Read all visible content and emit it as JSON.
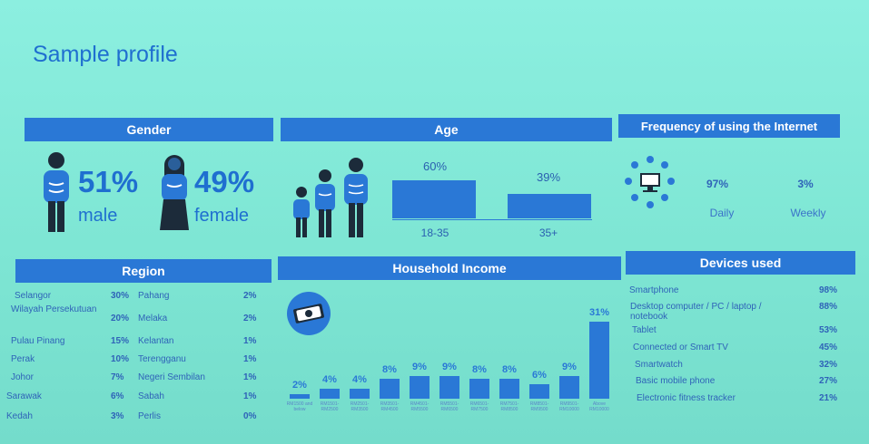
{
  "title": "Sample profile",
  "gender": {
    "header": "Gender",
    "male_pct": "51%",
    "male_label": "male",
    "female_pct": "49%",
    "female_label": "female"
  },
  "age": {
    "header": "Age",
    "groups": [
      {
        "label": "18-35",
        "value": "60%"
      },
      {
        "label": "35+",
        "value": "39%"
      }
    ]
  },
  "frequency": {
    "header": "Frequency of using the Internet",
    "items": [
      {
        "label": "Daily",
        "value": "97%"
      },
      {
        "label": "Weekly",
        "value": "3%"
      }
    ]
  },
  "region": {
    "header": "Region",
    "left": [
      {
        "name": "Selangor",
        "value": "30%"
      },
      {
        "name": "Wilayah Persekutuan",
        "value": "20%"
      },
      {
        "name": "Pulau Pinang",
        "value": "15%"
      },
      {
        "name": "Perak",
        "value": "10%"
      },
      {
        "name": "Johor",
        "value": "7%"
      },
      {
        "name": "Sarawak",
        "value": "6%"
      },
      {
        "name": "Kedah",
        "value": "3%"
      }
    ],
    "right": [
      {
        "name": "Pahang",
        "value": "2%"
      },
      {
        "name": "Melaka",
        "value": "2%"
      },
      {
        "name": "Kelantan",
        "value": "1%"
      },
      {
        "name": "Terengganu",
        "value": "1%"
      },
      {
        "name": "Negeri Sembilan",
        "value": "1%"
      },
      {
        "name": "Sabah",
        "value": "1%"
      },
      {
        "name": "Perlis",
        "value": "0%"
      }
    ]
  },
  "income": {
    "header": "Household Income"
  },
  "devices": {
    "header": "Devices used",
    "items": [
      {
        "name": "Smartphone",
        "value": "98%"
      },
      {
        "name": "Desktop computer / PC / laptop / notebook",
        "value": "88%"
      },
      {
        "name": "Tablet",
        "value": "53%"
      },
      {
        "name": "Connected or Smart TV",
        "value": "45%"
      },
      {
        "name": "Smartwatch",
        "value": "32%"
      },
      {
        "name": "Basic mobile phone",
        "value": "27%"
      },
      {
        "name": "Electronic fitness tracker",
        "value": "21%"
      }
    ]
  },
  "colors": {
    "accent": "#2a78d6",
    "background": "#7fe6d6"
  },
  "chart_data": [
    {
      "type": "bar",
      "categories": [
        "18-35",
        "35+"
      ],
      "values": [
        60,
        39
      ],
      "ylim": [
        0,
        100
      ]
    },
    {
      "type": "bar",
      "categories": [
        "RM1500 and below",
        "RM1501-RM2500",
        "RM2501-RM3500",
        "RM3501-RM4500",
        "RM4501-RM5500",
        "RM5501-RM6500",
        "RM6501-RM7500",
        "RM7501-RM8500",
        "RM8501-RM9500",
        "RM9501-RM10000",
        "Above RM10000"
      ],
      "values": [
        2,
        4,
        4,
        8,
        9,
        9,
        8,
        8,
        6,
        9,
        31
      ],
      "ylim": [
        0,
        31
      ]
    }
  ]
}
